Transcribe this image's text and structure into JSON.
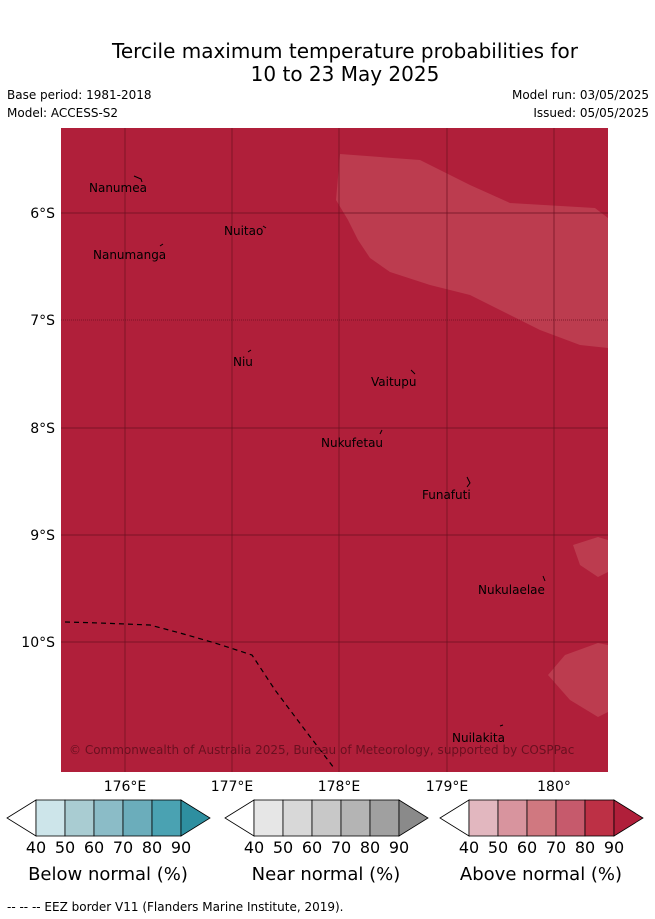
{
  "title_line1": "Tercile maximum temperature probabilities for",
  "title_line2": "10 to 23 May 2025",
  "base_period": "Base period: 1981-2018",
  "model": "Model: ACCESS-S2",
  "model_run": "Model run: 03/05/2025",
  "issued": "Issued: 05/05/2025",
  "lat_labels": [
    "6°S",
    "7°S",
    "8°S",
    "9°S",
    "10°S"
  ],
  "lon_labels": [
    "176°E",
    "177°E",
    "178°E",
    "179°E",
    "180°"
  ],
  "places": [
    "Nanumea",
    "Nuitao",
    "Nanumanga",
    "Niu",
    "Vaitupu",
    "Nukufetau",
    "Funafuti",
    "Nukulaelae",
    "Nuilakita"
  ],
  "copyright": "© Commonwealth of Australia 2025, Bureau of Meteorology, supported by COSPPac",
  "colorbars": [
    {
      "label": "Below normal (%)",
      "ticks": [
        "40",
        "50",
        "60",
        "70",
        "80",
        "90"
      ],
      "colors": [
        "#ffffff",
        "#cde5ea",
        "#a9ccd2",
        "#8bbcc7",
        "#6badbb",
        "#4aa2b2",
        "#2e8fa0"
      ]
    },
    {
      "label": "Near normal (%)",
      "ticks": [
        "40",
        "50",
        "60",
        "70",
        "80",
        "90"
      ],
      "colors": [
        "#ffffff",
        "#e6e6e6",
        "#d8d8d8",
        "#c8c8c8",
        "#b4b4b4",
        "#a0a0a0",
        "#8a8a8a"
      ]
    },
    {
      "label": "Above normal (%)",
      "ticks": [
        "40",
        "50",
        "60",
        "70",
        "80",
        "90"
      ],
      "colors": [
        "#ffffff",
        "#e2b7bf",
        "#d8949e",
        "#d07880",
        "#c65a6c",
        "#bd3045",
        "#b01f3a"
      ]
    }
  ],
  "map_colors": {
    "dominant": "#b01f3a",
    "lighter": "#bc3c4f",
    "grid": "#6a1020"
  },
  "eez_note": "-- -- -- EEZ border V11 (Flanders Marine Institute, 2019)."
}
